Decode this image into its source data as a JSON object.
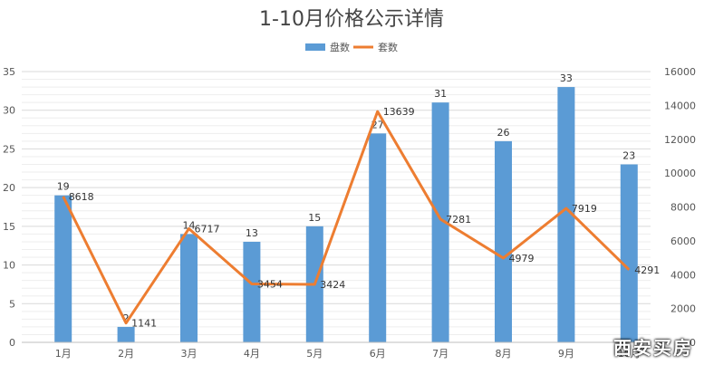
{
  "chart_data": {
    "type": "bar+line",
    "title": "1-10月价格公示详情",
    "categories": [
      "1月",
      "2月",
      "3月",
      "4月",
      "5月",
      "6月",
      "7月",
      "8月",
      "9月",
      "10月"
    ],
    "series": [
      {
        "name": "盘数",
        "type": "bar",
        "axis": "left",
        "color": "#5b9bd5",
        "values": [
          19,
          2,
          14,
          13,
          15,
          27,
          31,
          26,
          33,
          23
        ]
      },
      {
        "name": "套数",
        "type": "line",
        "axis": "right",
        "color": "#ed7d31",
        "values": [
          8618,
          1141,
          6717,
          3454,
          3424,
          13639,
          7281,
          4979,
          7919,
          4291
        ]
      }
    ],
    "yleft": {
      "min": 0,
      "max": 35,
      "step": 5
    },
    "yright": {
      "min": 0,
      "max": 16000,
      "step": 2000
    },
    "legend_position": "top-center",
    "grid": true
  },
  "watermark": "西安买房"
}
